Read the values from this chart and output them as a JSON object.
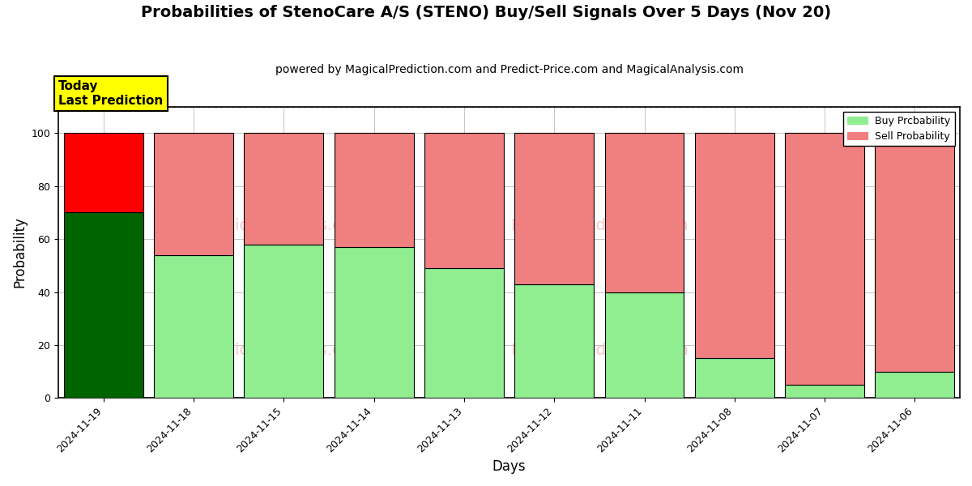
{
  "title": "Probabilities of StenoCare A/S (STENO) Buy/Sell Signals Over 5 Days (Nov 20)",
  "subtitle": "powered by MagicalPrediction.com and Predict-Price.com and MagicalAnalysis.com",
  "xlabel": "Days",
  "ylabel": "Probability",
  "dates": [
    "2024-11-19",
    "2024-11-18",
    "2024-11-15",
    "2024-11-14",
    "2024-11-13",
    "2024-11-12",
    "2024-11-11",
    "2024-11-08",
    "2024-11-07",
    "2024-11-06"
  ],
  "buy_values": [
    70,
    54,
    58,
    57,
    49,
    43,
    40,
    15,
    5,
    10
  ],
  "sell_values": [
    30,
    46,
    42,
    43,
    51,
    57,
    60,
    85,
    95,
    90
  ],
  "today_buy_color": "#006400",
  "today_sell_color": "#ff0000",
  "buy_color": "#90ee90",
  "sell_color": "#f08080",
  "today_index": 0,
  "ylim": [
    0,
    110
  ],
  "yticks": [
    0,
    20,
    40,
    60,
    80,
    100
  ],
  "dashed_line_y": 110,
  "legend_buy_label": "Buy Prcbability",
  "legend_sell_label": "Sell Probability",
  "today_label": "Today\nLast Prediction",
  "title_fontsize": 14,
  "subtitle_fontsize": 10,
  "axis_label_fontsize": 12,
  "tick_fontsize": 9,
  "bar_width": 0.88,
  "background_color": "#ffffff",
  "grid_color": "#aaaaaa"
}
